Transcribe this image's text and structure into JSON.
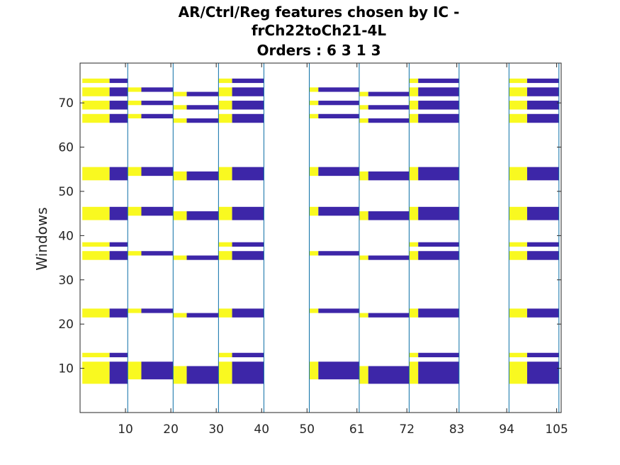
{
  "chart_data": {
    "type": "heatmap",
    "title": [
      "AR/Ctrl/Reg features chosen by IC -",
      "frCh22toCh21-4L",
      "Orders : 6 3 1 3"
    ],
    "xlabel": "",
    "ylabel": "Windows",
    "xlim": [
      0,
      106
    ],
    "ylim": [
      0,
      79
    ],
    "xticks": [
      10,
      20,
      30,
      40,
      50,
      61,
      72,
      83,
      94,
      105
    ],
    "yticks": [
      10,
      20,
      30,
      40,
      50,
      60,
      70
    ],
    "separators": [
      10.5,
      20.5,
      30.5,
      40.5,
      50.5,
      61.5,
      72.5,
      83.5,
      94.5,
      105.5
    ],
    "colors": {
      "yellow": "#f9f920",
      "blue": "#3d26a8",
      "separator": "#0a6ea6",
      "axis": "#262626"
    },
    "rows": [
      {
        "y": [
          6.5,
          11.5
        ],
        "segments": [
          [
            0.5,
            6.5,
            "yellow"
          ],
          [
            6.5,
            10.5,
            "blue"
          ],
          [
            30.5,
            33.5,
            "yellow"
          ],
          [
            33.5,
            40.5,
            "blue"
          ],
          [
            72.5,
            74.5,
            "yellow"
          ],
          [
            74.5,
            83.5,
            "blue"
          ],
          [
            94.5,
            98.5,
            "yellow"
          ],
          [
            98.5,
            105.5,
            "blue"
          ]
        ]
      },
      {
        "y": [
          7.5,
          11.5
        ],
        "segments": [
          [
            10.5,
            13.5,
            "yellow"
          ],
          [
            13.5,
            20.5,
            "blue"
          ],
          [
            50.5,
            52.5,
            "yellow"
          ],
          [
            52.5,
            61.5,
            "blue"
          ]
        ]
      },
      {
        "y": [
          6.5,
          10.5
        ],
        "segments": [
          [
            20.5,
            23.5,
            "yellow"
          ],
          [
            23.5,
            30.5,
            "blue"
          ],
          [
            61.5,
            63.5,
            "yellow"
          ],
          [
            63.5,
            72.5,
            "blue"
          ]
        ]
      },
      {
        "y": [
          12.5,
          13.5
        ],
        "segments": [
          [
            0.5,
            6.5,
            "yellow"
          ],
          [
            6.5,
            10.5,
            "blue"
          ],
          [
            30.5,
            33.5,
            "yellow"
          ],
          [
            33.5,
            40.5,
            "blue"
          ],
          [
            72.5,
            74.5,
            "yellow"
          ],
          [
            74.5,
            83.5,
            "blue"
          ],
          [
            94.5,
            98.5,
            "yellow"
          ],
          [
            98.5,
            105.5,
            "blue"
          ]
        ]
      },
      {
        "y": [
          21.5,
          23.5
        ],
        "segments": [
          [
            0.5,
            6.5,
            "yellow"
          ],
          [
            6.5,
            10.5,
            "blue"
          ],
          [
            30.5,
            33.5,
            "yellow"
          ],
          [
            33.5,
            40.5,
            "blue"
          ],
          [
            72.5,
            74.5,
            "yellow"
          ],
          [
            74.5,
            83.5,
            "blue"
          ],
          [
            94.5,
            98.5,
            "yellow"
          ],
          [
            98.5,
            105.5,
            "blue"
          ]
        ]
      },
      {
        "y": [
          22.5,
          23.5
        ],
        "segments": [
          [
            10.5,
            13.5,
            "yellow"
          ],
          [
            13.5,
            20.5,
            "blue"
          ],
          [
            50.5,
            52.5,
            "yellow"
          ],
          [
            52.5,
            61.5,
            "blue"
          ]
        ]
      },
      {
        "y": [
          21.5,
          22.5
        ],
        "segments": [
          [
            20.5,
            23.5,
            "yellow"
          ],
          [
            23.5,
            30.5,
            "blue"
          ],
          [
            61.5,
            63.5,
            "yellow"
          ],
          [
            63.5,
            72.5,
            "blue"
          ]
        ]
      },
      {
        "y": [
          34.5,
          36.5
        ],
        "segments": [
          [
            0.5,
            6.5,
            "yellow"
          ],
          [
            6.5,
            10.5,
            "blue"
          ],
          [
            30.5,
            33.5,
            "yellow"
          ],
          [
            33.5,
            40.5,
            "blue"
          ],
          [
            72.5,
            74.5,
            "yellow"
          ],
          [
            74.5,
            83.5,
            "blue"
          ],
          [
            94.5,
            98.5,
            "yellow"
          ],
          [
            98.5,
            105.5,
            "blue"
          ]
        ]
      },
      {
        "y": [
          35.5,
          36.5
        ],
        "segments": [
          [
            10.5,
            13.5,
            "yellow"
          ],
          [
            13.5,
            20.5,
            "blue"
          ],
          [
            50.5,
            52.5,
            "yellow"
          ],
          [
            52.5,
            61.5,
            "blue"
          ]
        ]
      },
      {
        "y": [
          34.5,
          35.5
        ],
        "segments": [
          [
            20.5,
            23.5,
            "yellow"
          ],
          [
            23.5,
            30.5,
            "blue"
          ],
          [
            61.5,
            63.5,
            "yellow"
          ],
          [
            63.5,
            72.5,
            "blue"
          ]
        ]
      },
      {
        "y": [
          37.5,
          38.5
        ],
        "segments": [
          [
            0.5,
            6.5,
            "yellow"
          ],
          [
            6.5,
            10.5,
            "blue"
          ],
          [
            30.5,
            33.5,
            "yellow"
          ],
          [
            33.5,
            40.5,
            "blue"
          ],
          [
            72.5,
            74.5,
            "yellow"
          ],
          [
            74.5,
            83.5,
            "blue"
          ],
          [
            94.5,
            98.5,
            "yellow"
          ],
          [
            98.5,
            105.5,
            "blue"
          ]
        ]
      },
      {
        "y": [
          43.5,
          46.5
        ],
        "segments": [
          [
            0.5,
            6.5,
            "yellow"
          ],
          [
            6.5,
            10.5,
            "blue"
          ],
          [
            30.5,
            33.5,
            "yellow"
          ],
          [
            33.5,
            40.5,
            "blue"
          ],
          [
            72.5,
            74.5,
            "yellow"
          ],
          [
            74.5,
            83.5,
            "blue"
          ],
          [
            94.5,
            98.5,
            "yellow"
          ],
          [
            98.5,
            105.5,
            "blue"
          ]
        ]
      },
      {
        "y": [
          44.5,
          46.5
        ],
        "segments": [
          [
            10.5,
            13.5,
            "yellow"
          ],
          [
            13.5,
            20.5,
            "blue"
          ],
          [
            50.5,
            52.5,
            "yellow"
          ],
          [
            52.5,
            61.5,
            "blue"
          ]
        ]
      },
      {
        "y": [
          43.5,
          45.5
        ],
        "segments": [
          [
            20.5,
            23.5,
            "yellow"
          ],
          [
            23.5,
            30.5,
            "blue"
          ],
          [
            61.5,
            63.5,
            "yellow"
          ],
          [
            63.5,
            72.5,
            "blue"
          ]
        ]
      },
      {
        "y": [
          52.5,
          55.5
        ],
        "segments": [
          [
            0.5,
            6.5,
            "yellow"
          ],
          [
            6.5,
            10.5,
            "blue"
          ],
          [
            30.5,
            33.5,
            "yellow"
          ],
          [
            33.5,
            40.5,
            "blue"
          ],
          [
            72.5,
            74.5,
            "yellow"
          ],
          [
            74.5,
            83.5,
            "blue"
          ],
          [
            94.5,
            98.5,
            "yellow"
          ],
          [
            98.5,
            105.5,
            "blue"
          ]
        ]
      },
      {
        "y": [
          53.5,
          55.5
        ],
        "segments": [
          [
            10.5,
            13.5,
            "yellow"
          ],
          [
            13.5,
            20.5,
            "blue"
          ],
          [
            50.5,
            52.5,
            "yellow"
          ],
          [
            52.5,
            61.5,
            "blue"
          ]
        ]
      },
      {
        "y": [
          52.5,
          54.5
        ],
        "segments": [
          [
            20.5,
            23.5,
            "yellow"
          ],
          [
            23.5,
            30.5,
            "blue"
          ],
          [
            61.5,
            63.5,
            "yellow"
          ],
          [
            63.5,
            72.5,
            "blue"
          ]
        ]
      },
      {
        "y": [
          65.5,
          67.5
        ],
        "segments": [
          [
            0.5,
            6.5,
            "yellow"
          ],
          [
            6.5,
            10.5,
            "blue"
          ],
          [
            30.5,
            33.5,
            "yellow"
          ],
          [
            33.5,
            40.5,
            "blue"
          ],
          [
            72.5,
            74.5,
            "yellow"
          ],
          [
            74.5,
            83.5,
            "blue"
          ],
          [
            94.5,
            98.5,
            "yellow"
          ],
          [
            98.5,
            105.5,
            "blue"
          ]
        ]
      },
      {
        "y": [
          68.5,
          70.5
        ],
        "segments": [
          [
            0.5,
            6.5,
            "yellow"
          ],
          [
            6.5,
            10.5,
            "blue"
          ],
          [
            30.5,
            33.5,
            "yellow"
          ],
          [
            33.5,
            40.5,
            "blue"
          ],
          [
            72.5,
            74.5,
            "yellow"
          ],
          [
            74.5,
            83.5,
            "blue"
          ],
          [
            94.5,
            98.5,
            "yellow"
          ],
          [
            98.5,
            105.5,
            "blue"
          ]
        ]
      },
      {
        "y": [
          71.5,
          73.5
        ],
        "segments": [
          [
            0.5,
            6.5,
            "yellow"
          ],
          [
            6.5,
            10.5,
            "blue"
          ],
          [
            30.5,
            33.5,
            "yellow"
          ],
          [
            33.5,
            40.5,
            "blue"
          ],
          [
            72.5,
            74.5,
            "yellow"
          ],
          [
            74.5,
            83.5,
            "blue"
          ],
          [
            94.5,
            98.5,
            "yellow"
          ],
          [
            98.5,
            105.5,
            "blue"
          ]
        ]
      },
      {
        "y": [
          74.5,
          75.5
        ],
        "segments": [
          [
            0.5,
            6.5,
            "yellow"
          ],
          [
            6.5,
            10.5,
            "blue"
          ],
          [
            30.5,
            33.5,
            "yellow"
          ],
          [
            33.5,
            40.5,
            "blue"
          ],
          [
            72.5,
            74.5,
            "yellow"
          ],
          [
            74.5,
            83.5,
            "blue"
          ],
          [
            94.5,
            98.5,
            "yellow"
          ],
          [
            98.5,
            105.5,
            "blue"
          ]
        ]
      },
      {
        "y": [
          66.5,
          67.5
        ],
        "segments": [
          [
            10.5,
            13.5,
            "yellow"
          ],
          [
            13.5,
            20.5,
            "blue"
          ],
          [
            50.5,
            52.5,
            "yellow"
          ],
          [
            52.5,
            61.5,
            "blue"
          ]
        ]
      },
      {
        "y": [
          69.5,
          70.5
        ],
        "segments": [
          [
            10.5,
            13.5,
            "yellow"
          ],
          [
            13.5,
            20.5,
            "blue"
          ],
          [
            50.5,
            52.5,
            "yellow"
          ],
          [
            52.5,
            61.5,
            "blue"
          ]
        ]
      },
      {
        "y": [
          72.5,
          73.5
        ],
        "segments": [
          [
            10.5,
            13.5,
            "yellow"
          ],
          [
            13.5,
            20.5,
            "blue"
          ],
          [
            50.5,
            52.5,
            "yellow"
          ],
          [
            52.5,
            61.5,
            "blue"
          ]
        ]
      },
      {
        "y": [
          65.5,
          66.5
        ],
        "segments": [
          [
            20.5,
            23.5,
            "yellow"
          ],
          [
            23.5,
            30.5,
            "blue"
          ],
          [
            61.5,
            63.5,
            "yellow"
          ],
          [
            63.5,
            72.5,
            "blue"
          ]
        ]
      },
      {
        "y": [
          68.5,
          69.5
        ],
        "segments": [
          [
            20.5,
            23.5,
            "yellow"
          ],
          [
            23.5,
            30.5,
            "blue"
          ],
          [
            61.5,
            63.5,
            "yellow"
          ],
          [
            63.5,
            72.5,
            "blue"
          ]
        ]
      },
      {
        "y": [
          71.5,
          72.5
        ],
        "segments": [
          [
            20.5,
            23.5,
            "yellow"
          ],
          [
            23.5,
            30.5,
            "blue"
          ],
          [
            61.5,
            63.5,
            "yellow"
          ],
          [
            63.5,
            72.5,
            "blue"
          ]
        ]
      }
    ]
  }
}
